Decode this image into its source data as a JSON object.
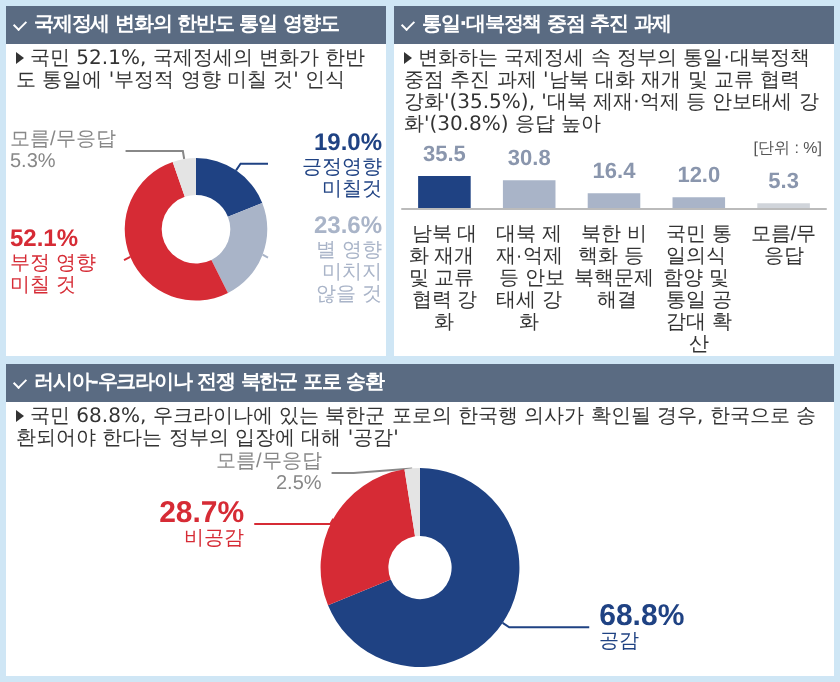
{
  "chart_data": [
    {
      "type": "donut",
      "title": "국제정세 변화의 한반도 통일 영향도",
      "subtitle": "국민 52.1%, 국제정세의 변화가 한반도 통일에 '부정적 영향 미칠 것' 인식",
      "categories": [
        "긍정영향 미칠것",
        "별 영향 미치지 않을 것",
        "부정 영향 미칠 것",
        "모름/무응답"
      ],
      "values": [
        19.0,
        23.6,
        52.1,
        5.3
      ],
      "value_labels": [
        "19.0%",
        "23.6%",
        "52.1%",
        "5.3%"
      ],
      "colors": [
        "#1f4283",
        "#a9b4c8",
        "#d62b35",
        "#e4e4e4"
      ]
    },
    {
      "type": "bar",
      "title": "통일·대북정책 중점 추진 과제",
      "subtitle": "변화하는 국제정세 속 정부의 통일·대북정책 중점 추진 과제 '남북 대화 재개 및 교류 협력 강화'(35.5%), '대북 제재·억제 등 안보태세 강화'(30.8%) 응답 높아",
      "annotations": [
        "[단위 : %]"
      ],
      "categories": [
        "남북 대화 재개 및 교류 협력 강화",
        "대북 제재·억제 등 안보태세 강화",
        "북한 비핵화 등 북핵문제 해결",
        "국민 통일의식 함양 및 통일 공감대 확산",
        "모름/무응답"
      ],
      "values": [
        35.5,
        30.8,
        16.4,
        12.0,
        5.3
      ],
      "value_labels": [
        "35.5",
        "30.8",
        "16.4",
        "12.0",
        "5.3"
      ],
      "colors": [
        "#1f4283",
        "#a9b4c8",
        "#a9b4c8",
        "#a9b4c8",
        "#d0d4da"
      ]
    },
    {
      "type": "donut",
      "title": "러시아-우크라이나 전쟁 북한군 포로 송환",
      "subtitle": "국민 68.8%, 우크라이나에 있는 북한군 포로의 한국행 의사가 확인될 경우, 한국으로 송환되어야 한다는 정부의 입장에 대해 '공감'",
      "categories": [
        "공감",
        "비공감",
        "모름/무응답"
      ],
      "values": [
        68.8,
        28.7,
        2.5
      ],
      "value_labels": [
        "68.8%",
        "28.7%",
        "2.5%"
      ],
      "colors": [
        "#1f4283",
        "#d62b35",
        "#e4e4e4"
      ]
    }
  ]
}
